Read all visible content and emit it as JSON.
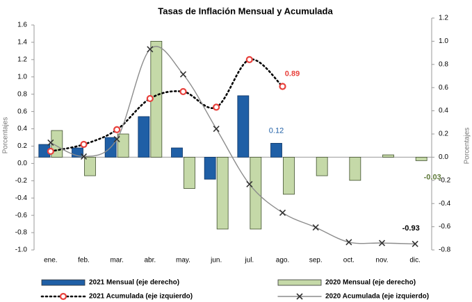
{
  "chart_data": {
    "type": "combo",
    "title": "Tasas de Inflación Mensual y Acumulada",
    "y_label": "Porcentajes",
    "y2_label": "Porcentajes",
    "categories": [
      "ene.",
      "feb.",
      "mar.",
      "abr.",
      "may.",
      "jun.",
      "jul.",
      "ago.",
      "sep.",
      "oct.",
      "nov.",
      "dic."
    ],
    "ylim": [
      -1,
      1.6
    ],
    "yticks": [
      1.6,
      1.4,
      1.2,
      {
        "value": 1,
        "label": "1.0"
      },
      0.8,
      0.6,
      0.4,
      0.2,
      {
        "value": 0,
        "label": "0.0"
      },
      -0.2,
      -0.4,
      -0.6,
      -0.8,
      {
        "value": -1,
        "label": "-1.0"
      }
    ],
    "y2lim": [
      -0.8,
      1.2
    ],
    "y2ticks": [
      1.2,
      {
        "value": 1,
        "label": "1.0"
      },
      0.8,
      0.6,
      0.4,
      0.2,
      {
        "value": 0,
        "label": "0.0"
      },
      -0.2,
      -0.4,
      -0.6,
      -0.8
    ],
    "legend": "bottom",
    "series": [
      {
        "name": "2021 Mensual (eje derecho)",
        "type": "bar",
        "axis": "y2",
        "color": "#1f5fa6",
        "values": [
          0.11,
          0.08,
          0.17,
          0.35,
          0.08,
          -0.19,
          0.53,
          0.12,
          null,
          null,
          null,
          null
        ],
        "value_labels": [
          null,
          null,
          null,
          null,
          null,
          null,
          null,
          "0.12",
          null,
          null,
          null,
          null
        ]
      },
      {
        "name": "2020 Mensual (eje derecho)",
        "type": "bar",
        "axis": "y2",
        "color": "#c5d9a8",
        "values": [
          0.23,
          -0.16,
          0.2,
          1.0,
          -0.27,
          -0.62,
          -0.62,
          -0.32,
          -0.16,
          -0.2,
          0.02,
          -0.03
        ],
        "value_labels": [
          null,
          null,
          null,
          null,
          null,
          null,
          null,
          null,
          null,
          null,
          null,
          "-0.03"
        ]
      },
      {
        "name": "2021 Acumulada (eje izquierdo)",
        "type": "line",
        "color": "#000000",
        "marker": "circle",
        "marker_color": "#e8413c",
        "line_style": "dotted",
        "values": [
          0.14,
          0.22,
          0.39,
          0.75,
          0.83,
          0.65,
          1.2,
          0.89,
          null,
          null,
          null,
          null
        ],
        "value_labels": [
          null,
          null,
          null,
          null,
          null,
          null,
          null,
          "0.89",
          null,
          null,
          null,
          null
        ]
      },
      {
        "name": "2020 Acumulada (eje izquierdo)",
        "type": "line",
        "color": "#8c8c8c",
        "marker": "x",
        "marker_color": "#333333",
        "line_style": "solid",
        "values": [
          0.24,
          0.08,
          0.28,
          1.32,
          1.03,
          0.4,
          -0.24,
          -0.57,
          -0.74,
          -0.91,
          -0.92,
          -0.93
        ],
        "value_labels": [
          null,
          null,
          null,
          null,
          null,
          null,
          null,
          null,
          null,
          null,
          null,
          "-0.93"
        ]
      }
    ]
  }
}
